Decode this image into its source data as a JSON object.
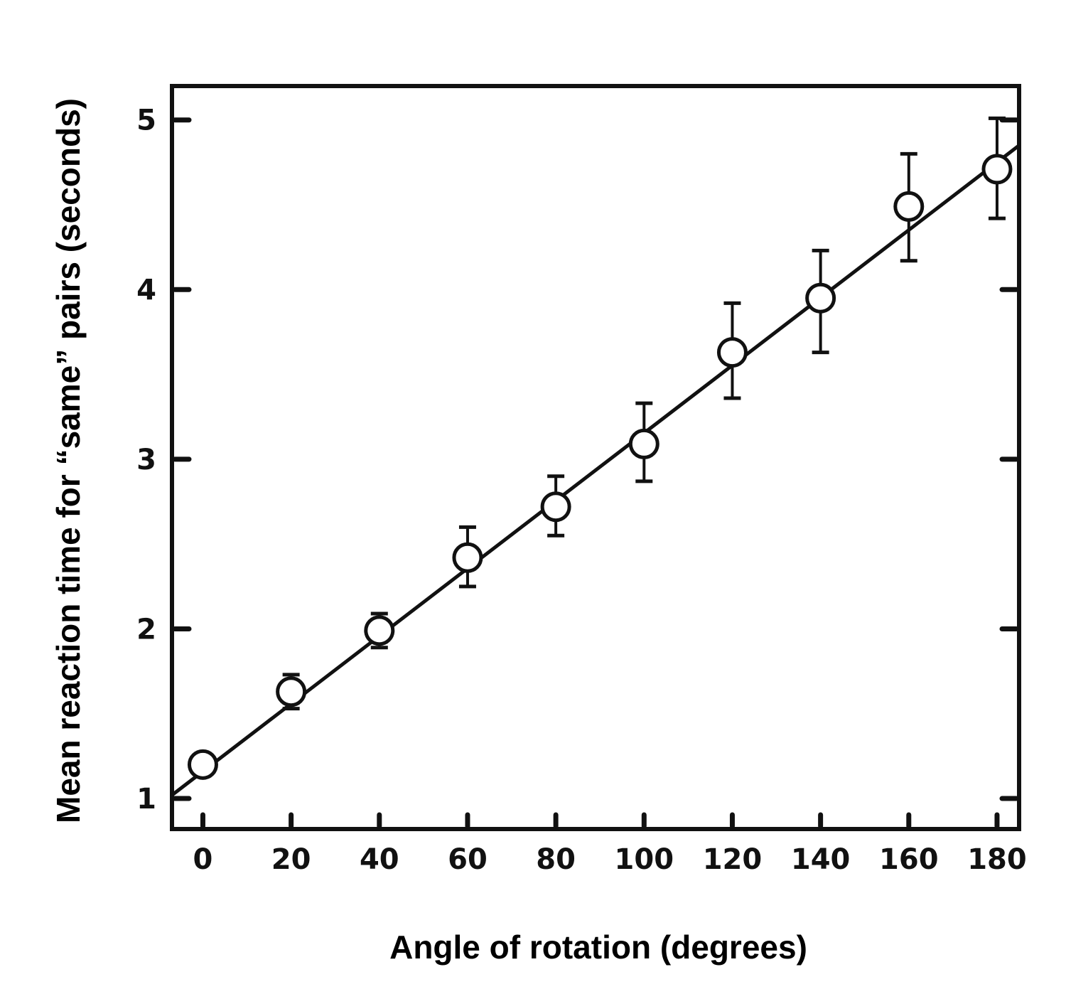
{
  "chart_data": {
    "type": "scatter",
    "xlabel": "Angle of rotation (degrees)",
    "ylabel": "Mean reaction time for “same” pairs (seconds)",
    "xlim": [
      -7,
      185
    ],
    "ylim": [
      0.82,
      5.2
    ],
    "x_ticks": [
      0,
      20,
      40,
      60,
      80,
      100,
      120,
      140,
      160,
      180
    ],
    "x_tick_labels": [
      "0",
      "20",
      "40",
      "60",
      "80",
      "100",
      "120",
      "140",
      "160",
      "180"
    ],
    "y_ticks": [
      1,
      2,
      3,
      4,
      5
    ],
    "y_tick_labels": [
      "1",
      "2",
      "3",
      "4",
      "5"
    ],
    "grid": false,
    "series": [
      {
        "type": "scatter",
        "marker": "open-circle",
        "x": [
          0,
          20,
          40,
          60,
          80,
          100,
          120,
          140,
          160,
          180
        ],
        "y": [
          1.2,
          1.63,
          1.99,
          2.42,
          2.72,
          3.09,
          3.63,
          3.95,
          4.49,
          4.71
        ],
        "error_low": [
          1.2,
          1.53,
          1.89,
          2.25,
          2.55,
          2.87,
          3.36,
          3.63,
          4.17,
          4.42
        ],
        "error_high": [
          1.2,
          1.73,
          2.09,
          2.6,
          2.9,
          3.33,
          3.92,
          4.23,
          4.8,
          5.01
        ]
      },
      {
        "type": "line",
        "x": [
          -7,
          185
        ],
        "y": [
          1.02,
          4.85
        ]
      }
    ]
  }
}
